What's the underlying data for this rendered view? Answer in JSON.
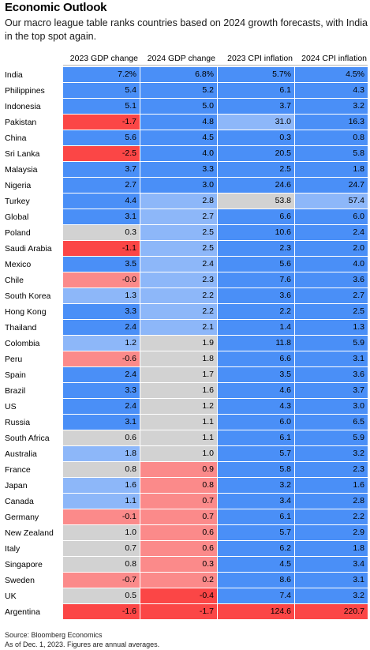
{
  "header": {
    "title": "Economic Outlook",
    "subtitle": "Our macro league table ranks countries based on 2024 growth forecasts, with India in the top spot again."
  },
  "footer": {
    "source": "Source: Bloomberg Economics",
    "note": "As of Dec. 1, 2023. Figures are annual averages."
  },
  "colors": {
    "blue_strong": "#4a8ff7",
    "blue_light": "#8db7f9",
    "gray": "#d2d2d2",
    "red_light": "#fb8a8a",
    "red_strong": "#fb4646"
  },
  "chart_data": {
    "type": "table",
    "title": "Economic Outlook",
    "columns": [
      "2023 GDP change",
      "2024 GDP change",
      "2023 CPI inflation",
      "2024 CPI inflation"
    ],
    "rows": [
      {
        "country": "India",
        "values": [
          "7.2%",
          "6.8%",
          "5.7%",
          "4.5%"
        ],
        "shades": [
          "blue_strong",
          "blue_strong",
          "blue_strong",
          "blue_strong"
        ]
      },
      {
        "country": "Philippines",
        "values": [
          "5.4",
          "5.2",
          "6.1",
          "4.3"
        ],
        "shades": [
          "blue_strong",
          "blue_strong",
          "blue_strong",
          "blue_strong"
        ]
      },
      {
        "country": "Indonesia",
        "values": [
          "5.1",
          "5.0",
          "3.7",
          "3.2"
        ],
        "shades": [
          "blue_strong",
          "blue_strong",
          "blue_strong",
          "blue_strong"
        ]
      },
      {
        "country": "Pakistan",
        "values": [
          "-1.7",
          "4.8",
          "31.0",
          "16.3"
        ],
        "shades": [
          "red_strong",
          "blue_strong",
          "blue_light",
          "blue_strong"
        ]
      },
      {
        "country": "China",
        "values": [
          "5.6",
          "4.5",
          "0.3",
          "0.8"
        ],
        "shades": [
          "blue_strong",
          "blue_strong",
          "blue_strong",
          "blue_strong"
        ]
      },
      {
        "country": "Sri Lanka",
        "values": [
          "-2.5",
          "4.0",
          "20.5",
          "5.8"
        ],
        "shades": [
          "red_strong",
          "blue_strong",
          "blue_strong",
          "blue_strong"
        ]
      },
      {
        "country": "Malaysia",
        "values": [
          "3.7",
          "3.3",
          "2.5",
          "1.8"
        ],
        "shades": [
          "blue_strong",
          "blue_strong",
          "blue_strong",
          "blue_strong"
        ]
      },
      {
        "country": "Nigeria",
        "values": [
          "2.7",
          "3.0",
          "24.6",
          "24.7"
        ],
        "shades": [
          "blue_strong",
          "blue_strong",
          "blue_strong",
          "blue_strong"
        ]
      },
      {
        "country": "Turkey",
        "values": [
          "4.4",
          "2.8",
          "53.8",
          "57.4"
        ],
        "shades": [
          "blue_strong",
          "blue_light",
          "gray",
          "blue_light"
        ]
      },
      {
        "country": "Global",
        "values": [
          "3.1",
          "2.7",
          "6.6",
          "6.0"
        ],
        "shades": [
          "blue_strong",
          "blue_light",
          "blue_strong",
          "blue_strong"
        ]
      },
      {
        "country": "Poland",
        "values": [
          "0.3",
          "2.5",
          "10.6",
          "2.4"
        ],
        "shades": [
          "gray",
          "blue_light",
          "blue_strong",
          "blue_strong"
        ]
      },
      {
        "country": "Saudi Arabia",
        "values": [
          "-1.1",
          "2.5",
          "2.3",
          "2.0"
        ],
        "shades": [
          "red_strong",
          "blue_light",
          "blue_strong",
          "blue_strong"
        ]
      },
      {
        "country": "Mexico",
        "values": [
          "3.5",
          "2.4",
          "5.6",
          "4.0"
        ],
        "shades": [
          "blue_strong",
          "blue_light",
          "blue_strong",
          "blue_strong"
        ]
      },
      {
        "country": "Chile",
        "values": [
          "-0.0",
          "2.3",
          "7.6",
          "3.6"
        ],
        "shades": [
          "red_light",
          "blue_light",
          "blue_strong",
          "blue_strong"
        ]
      },
      {
        "country": "South Korea",
        "values": [
          "1.3",
          "2.2",
          "3.6",
          "2.7"
        ],
        "shades": [
          "blue_light",
          "blue_light",
          "blue_strong",
          "blue_strong"
        ]
      },
      {
        "country": "Hong Kong",
        "values": [
          "3.3",
          "2.2",
          "2.2",
          "2.5"
        ],
        "shades": [
          "blue_strong",
          "blue_light",
          "blue_strong",
          "blue_strong"
        ]
      },
      {
        "country": "Thailand",
        "values": [
          "2.4",
          "2.1",
          "1.4",
          "1.3"
        ],
        "shades": [
          "blue_strong",
          "blue_light",
          "blue_strong",
          "blue_strong"
        ]
      },
      {
        "country": "Colombia",
        "values": [
          "1.2",
          "1.9",
          "11.8",
          "5.9"
        ],
        "shades": [
          "blue_light",
          "gray",
          "blue_strong",
          "blue_strong"
        ]
      },
      {
        "country": "Peru",
        "values": [
          "-0.6",
          "1.8",
          "6.6",
          "3.1"
        ],
        "shades": [
          "red_light",
          "gray",
          "blue_strong",
          "blue_strong"
        ]
      },
      {
        "country": "Spain",
        "values": [
          "2.4",
          "1.7",
          "3.5",
          "3.6"
        ],
        "shades": [
          "blue_strong",
          "gray",
          "blue_strong",
          "blue_strong"
        ]
      },
      {
        "country": "Brazil",
        "values": [
          "3.3",
          "1.6",
          "4.6",
          "3.7"
        ],
        "shades": [
          "blue_strong",
          "gray",
          "blue_strong",
          "blue_strong"
        ]
      },
      {
        "country": "US",
        "values": [
          "2.4",
          "1.2",
          "4.3",
          "3.0"
        ],
        "shades": [
          "blue_strong",
          "gray",
          "blue_strong",
          "blue_strong"
        ]
      },
      {
        "country": "Russia",
        "values": [
          "3.1",
          "1.1",
          "6.0",
          "6.5"
        ],
        "shades": [
          "blue_strong",
          "gray",
          "blue_strong",
          "blue_strong"
        ]
      },
      {
        "country": "South Africa",
        "values": [
          "0.6",
          "1.1",
          "6.1",
          "5.9"
        ],
        "shades": [
          "gray",
          "gray",
          "blue_strong",
          "blue_strong"
        ]
      },
      {
        "country": "Australia",
        "values": [
          "1.8",
          "1.0",
          "5.7",
          "3.2"
        ],
        "shades": [
          "blue_light",
          "gray",
          "blue_strong",
          "blue_strong"
        ]
      },
      {
        "country": "France",
        "values": [
          "0.8",
          "0.9",
          "5.8",
          "2.3"
        ],
        "shades": [
          "gray",
          "red_light",
          "blue_strong",
          "blue_strong"
        ]
      },
      {
        "country": "Japan",
        "values": [
          "1.6",
          "0.8",
          "3.2",
          "1.6"
        ],
        "shades": [
          "blue_light",
          "red_light",
          "blue_strong",
          "blue_strong"
        ]
      },
      {
        "country": "Canada",
        "values": [
          "1.1",
          "0.7",
          "3.4",
          "2.8"
        ],
        "shades": [
          "blue_light",
          "red_light",
          "blue_strong",
          "blue_strong"
        ]
      },
      {
        "country": "Germany",
        "values": [
          "-0.1",
          "0.7",
          "6.1",
          "2.2"
        ],
        "shades": [
          "red_light",
          "red_light",
          "blue_strong",
          "blue_strong"
        ]
      },
      {
        "country": "New Zealand",
        "values": [
          "1.0",
          "0.6",
          "5.7",
          "2.9"
        ],
        "shades": [
          "gray",
          "red_light",
          "blue_strong",
          "blue_strong"
        ]
      },
      {
        "country": "Italy",
        "values": [
          "0.7",
          "0.6",
          "6.2",
          "1.8"
        ],
        "shades": [
          "gray",
          "red_light",
          "blue_strong",
          "blue_strong"
        ]
      },
      {
        "country": "Singapore",
        "values": [
          "0.8",
          "0.3",
          "4.5",
          "3.4"
        ],
        "shades": [
          "gray",
          "red_light",
          "blue_strong",
          "blue_strong"
        ]
      },
      {
        "country": "Sweden",
        "values": [
          "-0.7",
          "0.2",
          "8.6",
          "3.1"
        ],
        "shades": [
          "red_light",
          "red_light",
          "blue_strong",
          "blue_strong"
        ]
      },
      {
        "country": "UK",
        "values": [
          "0.5",
          "-0.4",
          "7.4",
          "3.2"
        ],
        "shades": [
          "gray",
          "red_strong",
          "blue_strong",
          "blue_strong"
        ]
      },
      {
        "country": "Argentina",
        "values": [
          "-1.6",
          "-1.7",
          "124.6",
          "220.7"
        ],
        "shades": [
          "red_strong",
          "red_strong",
          "red_strong",
          "red_strong"
        ]
      }
    ]
  }
}
